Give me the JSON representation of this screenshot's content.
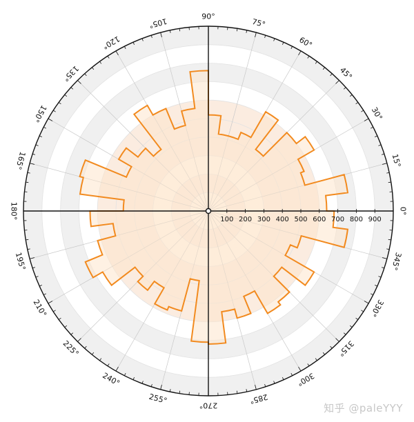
{
  "watermark": "知乎 @paleYYY",
  "colors": {
    "series": "#f28a1e",
    "fill": "#fde6cc",
    "ring_light": "#f0f0f0",
    "ring_white": "#ffffff",
    "inner_a": "#fbece0",
    "inner_b": "#fff5ea",
    "axis": "#111111",
    "grid": "#c8c8c8"
  },
  "chart_data": {
    "type": "polar-bar",
    "title": "",
    "theta_ticks": [
      "0°",
      "15°",
      "30°",
      "45°",
      "60°",
      "75°",
      "90°",
      "105°",
      "120°",
      "135°",
      "150°",
      "165°",
      "180°",
      "195°",
      "210°",
      "225°",
      "240°",
      "255°",
      "270°",
      "285°",
      "300°",
      "315°",
      "330°",
      "345°"
    ],
    "r_ticks": [
      "100",
      "200",
      "300",
      "400",
      "500",
      "600",
      "700",
      "800",
      "900"
    ],
    "r_max": 1000,
    "bin_width_deg": 7.5,
    "bin_centers_deg": [
      3.75,
      11.25,
      18.75,
      26.25,
      33.75,
      41.25,
      48.75,
      56.25,
      63.75,
      71.25,
      78.75,
      86.25,
      93.75,
      101.25,
      108.75,
      116.25,
      123.75,
      131.25,
      138.75,
      146.25,
      153.75,
      161.25,
      168.75,
      176.25,
      183.75,
      191.25,
      198.75,
      206.25,
      213.75,
      221.25,
      228.75,
      236.25,
      243.75,
      251.25,
      258.75,
      266.25,
      273.75,
      281.25,
      288.75,
      296.25,
      303.75,
      311.25,
      318.75,
      326.25,
      333.75,
      341.25,
      348.75,
      356.25
    ],
    "values": [
      640,
      760,
      540,
      560,
      660,
      600,
      420,
      620,
      460,
      420,
      420,
      520,
      760,
      560,
      480,
      600,
      660,
      420,
      480,
      560,
      480,
      720,
      700,
      460,
      640,
      520,
      620,
      720,
      660,
      500,
      540,
      480,
      580,
      560,
      380,
      710,
      720,
      550,
      600,
      500,
      640,
      620,
      500,
      660,
      480,
      520,
      760,
      680
    ]
  }
}
